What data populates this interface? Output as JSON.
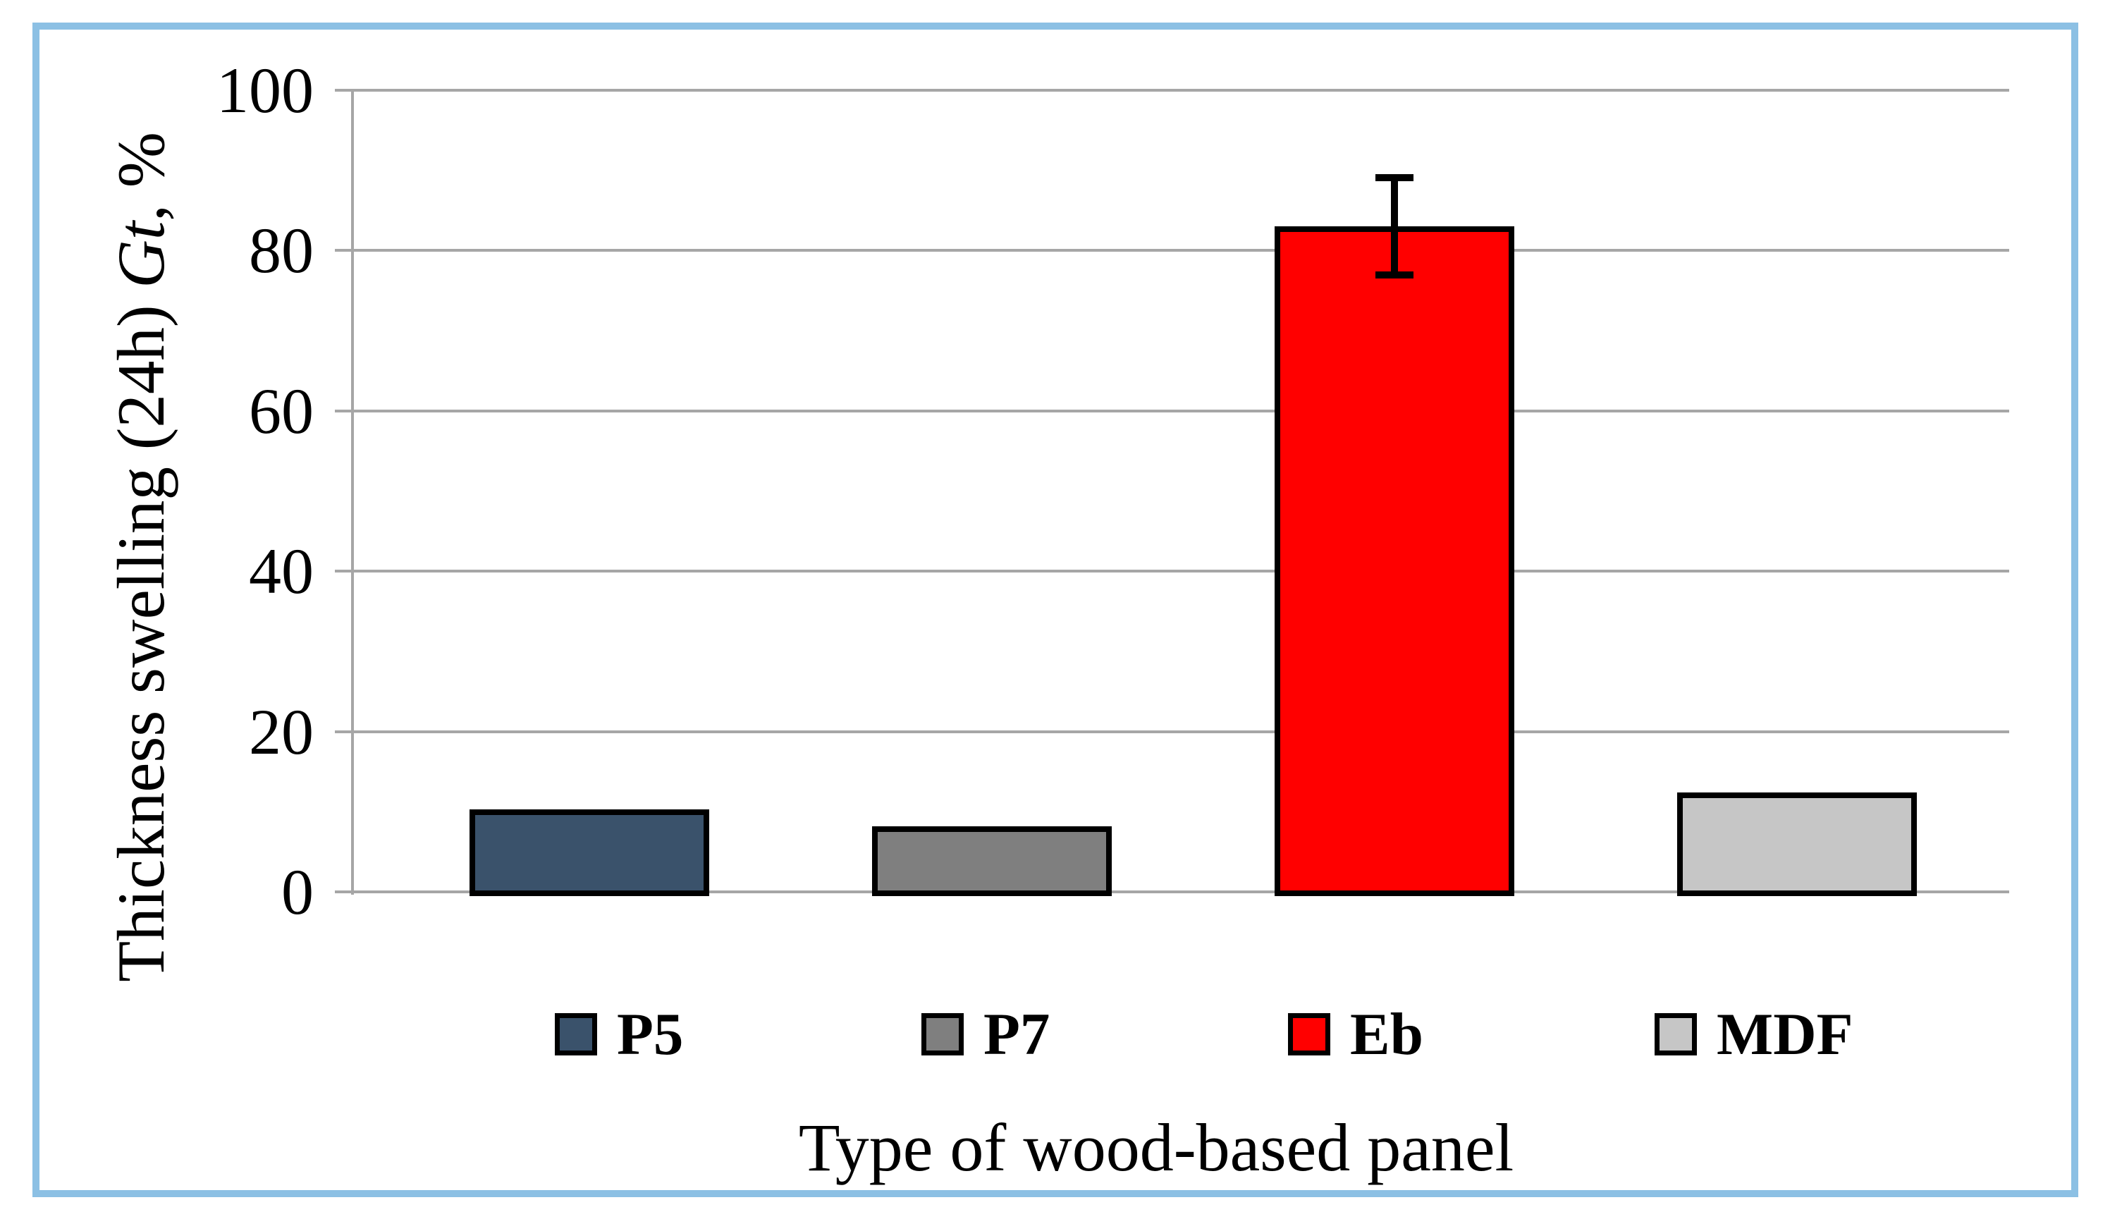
{
  "figure": {
    "frame_border_color": "#8CC0E4",
    "background_color": "#FFFFFF",
    "gridline_color": "#A6A6A6"
  },
  "chart_data": {
    "type": "bar",
    "title": "",
    "categories": [
      "P5",
      "P7",
      "Eb",
      "MDF"
    ],
    "values": [
      10.3,
      8.2,
      83,
      12.4
    ],
    "bar_colors": [
      "#3A526B",
      "#7F7F7F",
      "#FF0000",
      "#C6C6C6"
    ],
    "error_bars": [
      0,
      0,
      6.5,
      0
    ],
    "ylabel_prefix": "Thickness swelling (24h) ",
    "ylabel_italic": "Gt",
    "ylabel_suffix": ", %",
    "ylabel_full": "Thickness swelling (24h) Gt, %",
    "xlabel": "Type of wood-based panel",
    "ylim": [
      0,
      100
    ],
    "yticks": [
      0,
      20,
      40,
      60,
      80,
      100
    ],
    "grid": true,
    "legend_position": "bottom",
    "legend": [
      {
        "label": "P5",
        "color": "#3A526B"
      },
      {
        "label": "P7",
        "color": "#7F7F7F"
      },
      {
        "label": "Eb",
        "color": "#FF0000"
      },
      {
        "label": "MDF",
        "color": "#C6C6C6"
      }
    ]
  }
}
